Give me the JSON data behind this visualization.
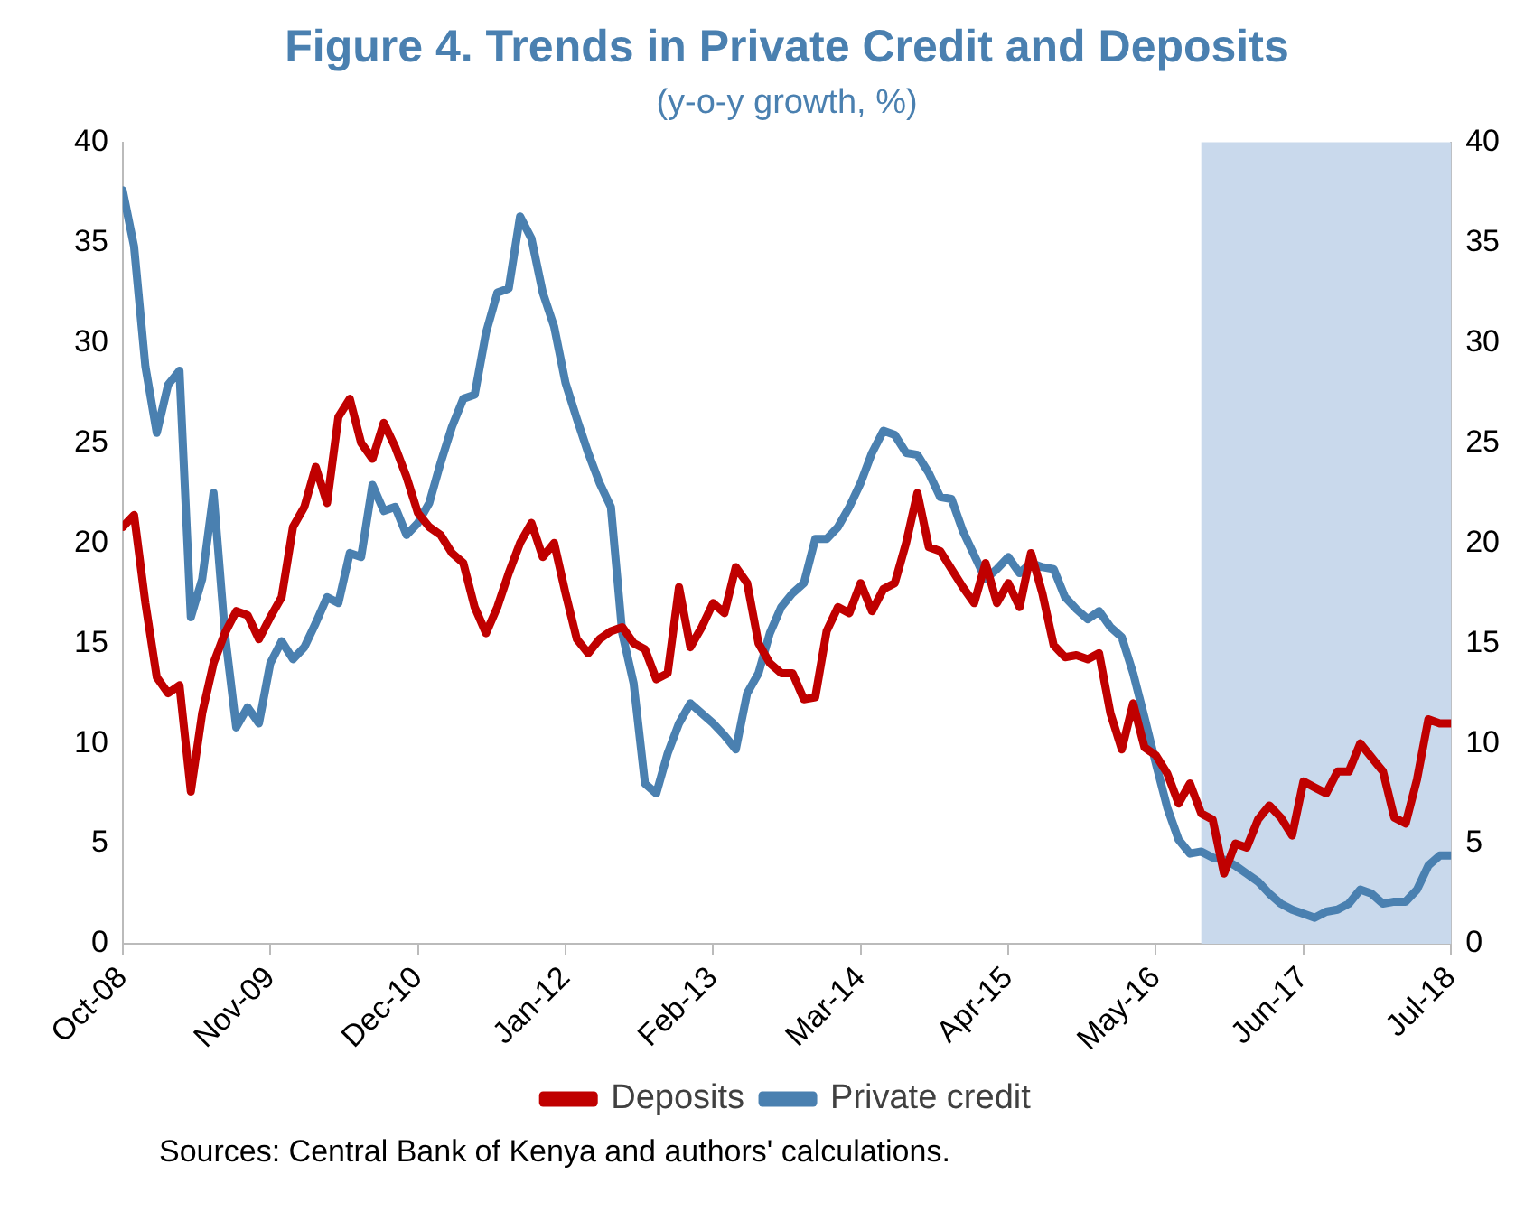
{
  "chart_data": {
    "type": "line",
    "title": "Figure 4. Trends in Private Credit and Deposits",
    "subtitle": "(y-o-y growth, %)",
    "x": [
      "2008-10",
      "2008-11",
      "2008-12",
      "2009-01",
      "2009-02",
      "2009-03",
      "2009-04",
      "2009-05",
      "2009-06",
      "2009-07",
      "2009-08",
      "2009-09",
      "2009-10",
      "2009-11",
      "2009-12",
      "2010-01",
      "2010-02",
      "2010-03",
      "2010-04",
      "2010-05",
      "2010-06",
      "2010-07",
      "2010-08",
      "2010-09",
      "2010-10",
      "2010-11",
      "2010-12",
      "2011-01",
      "2011-02",
      "2011-03",
      "2011-04",
      "2011-05",
      "2011-06",
      "2011-07",
      "2011-08",
      "2011-09",
      "2011-10",
      "2011-11",
      "2011-12",
      "2012-01",
      "2012-02",
      "2012-03",
      "2012-04",
      "2012-05",
      "2012-06",
      "2012-07",
      "2012-08",
      "2012-09",
      "2012-10",
      "2012-11",
      "2012-12",
      "2013-01",
      "2013-02",
      "2013-03",
      "2013-04",
      "2013-05",
      "2013-06",
      "2013-07",
      "2013-08",
      "2013-09",
      "2013-10",
      "2013-11",
      "2013-12",
      "2014-01",
      "2014-02",
      "2014-03",
      "2014-04",
      "2014-05",
      "2014-06",
      "2014-07",
      "2014-08",
      "2014-09",
      "2014-10",
      "2014-11",
      "2014-12",
      "2015-01",
      "2015-02",
      "2015-03",
      "2015-04",
      "2015-05",
      "2015-06",
      "2015-07",
      "2015-08",
      "2015-09",
      "2015-10",
      "2015-11",
      "2015-12",
      "2016-01",
      "2016-02",
      "2016-03",
      "2016-04",
      "2016-05",
      "2016-06",
      "2016-07",
      "2016-08",
      "2016-09",
      "2016-10",
      "2016-11",
      "2016-12",
      "2017-01",
      "2017-02",
      "2017-03",
      "2017-04",
      "2017-05",
      "2017-06",
      "2017-07",
      "2017-08",
      "2017-09",
      "2017-10",
      "2017-11",
      "2017-12",
      "2018-01",
      "2018-02",
      "2018-03",
      "2018-04",
      "2018-05",
      "2018-06",
      "2018-07"
    ],
    "series": [
      {
        "name": "Deposits",
        "color": "#c00000",
        "values": [
          20.8,
          21.4,
          17.0,
          13.3,
          12.5,
          12.9,
          7.6,
          11.5,
          14.0,
          15.5,
          16.6,
          16.4,
          15.2,
          16.3,
          17.3,
          20.8,
          21.8,
          23.8,
          22.0,
          26.3,
          27.2,
          25.0,
          24.2,
          26.0,
          24.8,
          23.3,
          21.5,
          20.8,
          20.4,
          19.5,
          19.0,
          16.8,
          15.5,
          16.8,
          18.5,
          20.0,
          21.0,
          19.3,
          20.0,
          17.5,
          15.2,
          14.5,
          15.2,
          15.6,
          15.8,
          15.0,
          14.7,
          13.2,
          13.5,
          17.8,
          14.8,
          15.8,
          17.0,
          16.5,
          18.8,
          18.0,
          15.0,
          14.0,
          13.5,
          13.5,
          12.2,
          12.3,
          15.6,
          16.8,
          16.5,
          18.0,
          16.6,
          17.7,
          18.0,
          20.0,
          22.5,
          19.8,
          19.6,
          18.7,
          17.8,
          17.0,
          19.0,
          17.0,
          18.0,
          16.8,
          19.5,
          17.5,
          14.9,
          14.3,
          14.4,
          14.2,
          14.5,
          11.5,
          9.7,
          12.0,
          9.8,
          9.4,
          8.5,
          7.0,
          8.0,
          6.5,
          6.2,
          3.5,
          5.0,
          4.8,
          6.2,
          6.9,
          6.3,
          5.4,
          8.1,
          7.8,
          7.5,
          8.6,
          8.6,
          10.0,
          9.3,
          8.6,
          6.3,
          6.0,
          8.2,
          11.2,
          11.0,
          11.0
        ]
      },
      {
        "name": "Private credit",
        "color": "#4a80b0",
        "values": [
          37.6,
          34.8,
          28.8,
          25.5,
          27.9,
          28.6,
          16.3,
          18.2,
          22.5,
          15.5,
          10.8,
          11.8,
          11.0,
          14.0,
          15.1,
          14.2,
          14.8,
          16.0,
          17.3,
          17.0,
          19.5,
          19.3,
          22.9,
          21.6,
          21.8,
          20.4,
          21.0,
          22.0,
          24.0,
          25.8,
          27.2,
          27.4,
          30.5,
          32.5,
          32.7,
          36.3,
          35.2,
          32.5,
          30.8,
          28.0,
          26.2,
          24.5,
          23.0,
          21.8,
          15.5,
          13.0,
          8.0,
          7.5,
          9.5,
          11.0,
          12.0,
          11.5,
          11.0,
          10.4,
          9.7,
          12.5,
          13.5,
          15.5,
          16.8,
          17.5,
          18.0,
          20.2,
          20.2,
          20.8,
          21.8,
          23.0,
          24.5,
          25.6,
          25.4,
          24.5,
          24.4,
          23.5,
          22.3,
          22.2,
          20.6,
          19.4,
          18.2,
          18.7,
          19.3,
          18.5,
          19.0,
          18.8,
          18.7,
          17.3,
          16.7,
          16.2,
          16.6,
          15.8,
          15.3,
          13.5,
          11.3,
          9.0,
          6.8,
          5.2,
          4.5,
          4.6,
          4.3,
          4.2,
          3.9,
          3.5,
          3.1,
          2.5,
          2.0,
          1.7,
          1.5,
          1.3,
          1.6,
          1.7,
          2.0,
          2.7,
          2.5,
          2.0,
          2.1,
          2.1,
          2.7,
          3.9,
          4.4,
          4.4
        ]
      }
    ],
    "xlim": [
      "2008-10",
      "2018-07"
    ],
    "xticks": [
      {
        "value": "2008-10",
        "label": "Oct-08"
      },
      {
        "value": "2009-11",
        "label": "Nov-09"
      },
      {
        "value": "2010-12",
        "label": "Dec-10"
      },
      {
        "value": "2012-01",
        "label": "Jan-12"
      },
      {
        "value": "2013-02",
        "label": "Feb-13"
      },
      {
        "value": "2014-03",
        "label": "Mar-14"
      },
      {
        "value": "2015-04",
        "label": "Apr-15"
      },
      {
        "value": "2016-05",
        "label": "May-16"
      },
      {
        "value": "2017-06",
        "label": "Jun-17"
      },
      {
        "value": "2018-07",
        "label": "Jul-18"
      }
    ],
    "ylim": [
      0,
      40
    ],
    "yticks": [
      0,
      5,
      10,
      15,
      20,
      25,
      30,
      35,
      40
    ],
    "y2lim": [
      0,
      40
    ],
    "y2ticks": [
      0,
      5,
      10,
      15,
      20,
      25,
      30,
      35,
      40
    ],
    "bands": [
      {
        "axis": "x",
        "from": "2016-09",
        "to": "2018-07",
        "color": "#c9d9ec"
      }
    ],
    "legend": "bottom",
    "grid": false,
    "marker": "none",
    "line_style": "solid",
    "annotations": [
      "Sources: Central Bank of Kenya and authors' calculations."
    ]
  }
}
